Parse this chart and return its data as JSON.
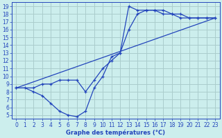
{
  "xlabel": "Graphe des températures (°C)",
  "bg_color": "#cceeed",
  "grid_color": "#aacccc",
  "line_color": "#2244bb",
  "ylim": [
    4.5,
    19.5
  ],
  "xlim": [
    -0.5,
    23.5
  ],
  "yticks": [
    5,
    6,
    7,
    8,
    9,
    10,
    11,
    12,
    13,
    14,
    15,
    16,
    17,
    18,
    19
  ],
  "xticks": [
    0,
    1,
    2,
    3,
    4,
    5,
    6,
    7,
    8,
    9,
    10,
    11,
    12,
    13,
    14,
    15,
    16,
    17,
    18,
    19,
    20,
    21,
    22,
    23
  ],
  "line1_x": [
    0,
    1,
    2,
    3,
    4,
    5,
    6,
    7,
    8,
    9,
    10,
    11,
    12,
    13,
    14,
    15,
    16,
    17,
    18,
    19,
    20,
    21,
    22,
    23
  ],
  "line1_y": [
    8.5,
    8.5,
    8.0,
    7.5,
    6.5,
    5.5,
    5.0,
    4.8,
    5.5,
    8.5,
    10.0,
    12.5,
    13.0,
    19.0,
    18.5,
    18.5,
    18.5,
    18.0,
    18.0,
    17.5,
    17.5,
    17.5,
    17.5,
    17.5
  ],
  "line2_x": [
    0,
    2,
    3,
    4,
    5,
    6,
    7,
    8,
    9,
    10,
    11,
    12,
    13,
    14,
    15,
    16,
    17,
    18,
    19,
    20,
    21,
    22,
    23
  ],
  "line2_y": [
    8.5,
    8.5,
    9.0,
    9.0,
    9.5,
    9.5,
    9.5,
    8.0,
    9.5,
    11.0,
    12.0,
    13.0,
    16.0,
    18.0,
    18.5,
    18.5,
    18.5,
    18.0,
    18.0,
    17.5,
    17.5,
    17.5,
    17.5
  ],
  "line3_x": [
    0,
    23
  ],
  "line3_y": [
    8.5,
    17.5
  ],
  "tick_fontsize": 5.5,
  "xlabel_fontsize": 6.0
}
